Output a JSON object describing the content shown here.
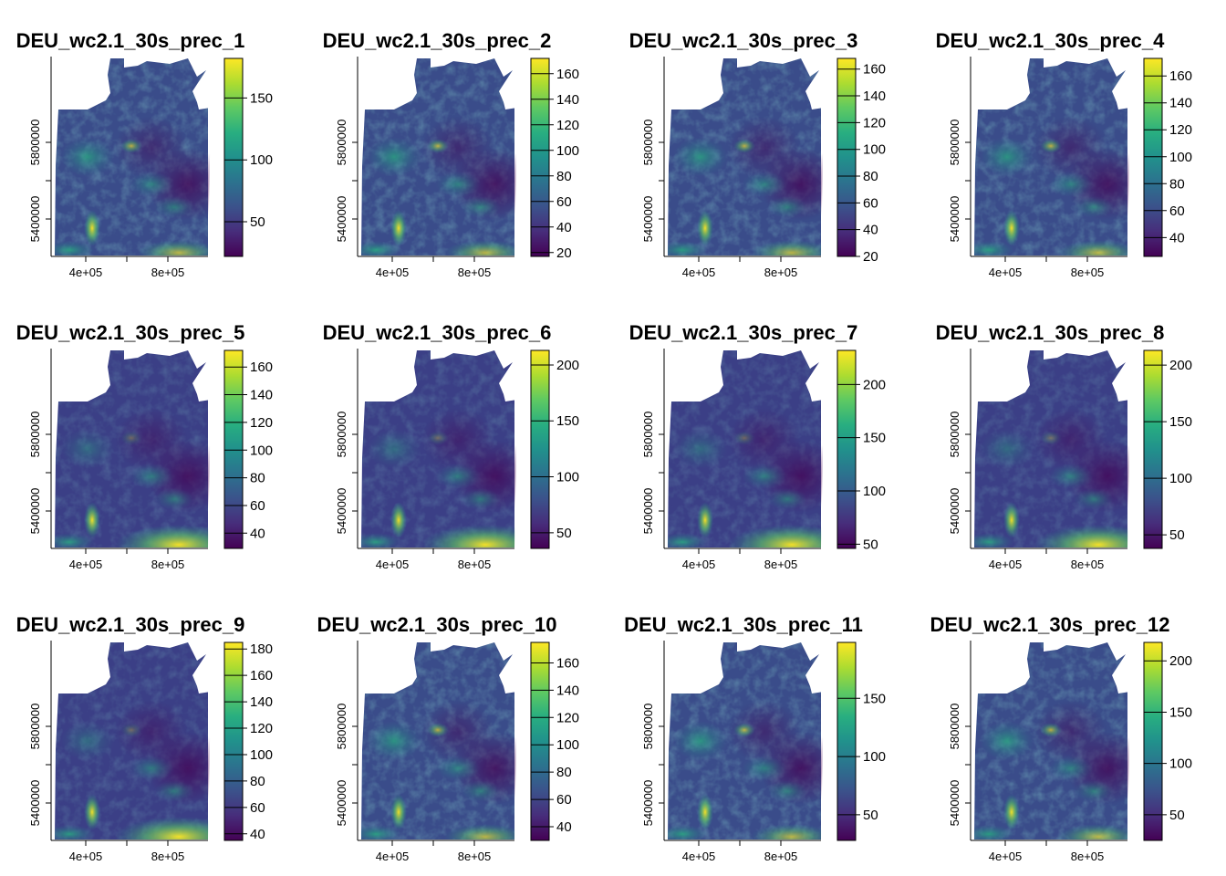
{
  "figure": {
    "x_ticks": [
      "4e+05",
      "8e+05"
    ],
    "y_ticks": [
      "5400000",
      "5800000"
    ]
  },
  "panels": [
    {
      "title": "DEU_wc2.1_30s_prec_1",
      "range": [
        22,
        182
      ],
      "ticks": [
        50,
        100,
        150
      ]
    },
    {
      "title": "DEU_wc2.1_30s_prec_2",
      "range": [
        17,
        172
      ],
      "ticks": [
        20,
        40,
        60,
        80,
        100,
        120,
        140,
        160
      ]
    },
    {
      "title": "DEU_wc2.1_30s_prec_3",
      "range": [
        20,
        168
      ],
      "ticks": [
        20,
        40,
        60,
        80,
        100,
        120,
        140,
        160
      ]
    },
    {
      "title": "DEU_wc2.1_30s_prec_4",
      "range": [
        26,
        173
      ],
      "ticks": [
        40,
        60,
        80,
        100,
        120,
        140,
        160
      ]
    },
    {
      "title": "DEU_wc2.1_30s_prec_5",
      "range": [
        29,
        172
      ],
      "ticks": [
        40,
        60,
        80,
        100,
        120,
        140,
        160
      ]
    },
    {
      "title": "DEU_wc2.1_30s_prec_6",
      "range": [
        36,
        213
      ],
      "ticks": [
        50,
        100,
        150,
        200
      ]
    },
    {
      "title": "DEU_wc2.1_30s_prec_7",
      "range": [
        46,
        232
      ],
      "ticks": [
        50,
        100,
        150,
        200
      ]
    },
    {
      "title": "DEU_wc2.1_30s_prec_8",
      "range": [
        38,
        213
      ],
      "ticks": [
        50,
        100,
        150,
        200
      ]
    },
    {
      "title": "DEU_wc2.1_30s_prec_9",
      "range": [
        35,
        185
      ],
      "ticks": [
        40,
        60,
        80,
        100,
        120,
        140,
        160,
        180
      ]
    },
    {
      "title": "DEU_wc2.1_30s_prec_10",
      "range": [
        30,
        175
      ],
      "ticks": [
        40,
        60,
        80,
        100,
        120,
        140,
        160
      ]
    },
    {
      "title": "DEU_wc2.1_30s_prec_11",
      "range": [
        28,
        198
      ],
      "ticks": [
        50,
        100,
        150
      ]
    },
    {
      "title": "DEU_wc2.1_30s_prec_12",
      "range": [
        25,
        218
      ],
      "ticks": [
        50,
        100,
        150,
        200
      ]
    }
  ]
}
